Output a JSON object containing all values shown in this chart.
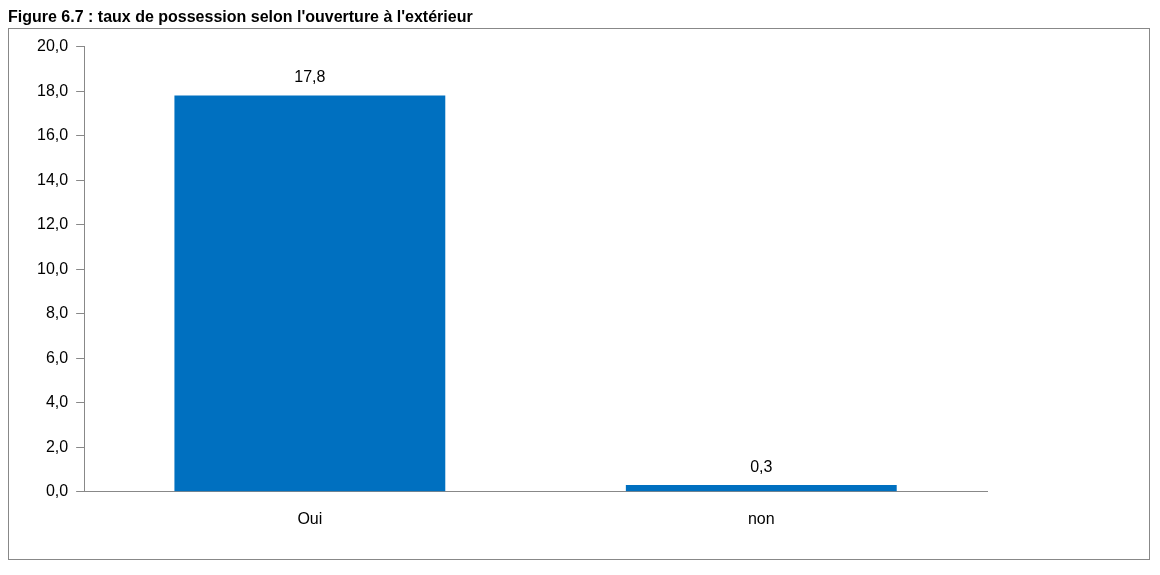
{
  "chart_data": {
    "type": "bar",
    "title": "Figure 6.7 : taux de possession selon l'ouverture à l'extérieur",
    "categories": [
      "Oui",
      "non"
    ],
    "values": [
      17.8,
      0.3
    ],
    "value_labels": [
      "17,8",
      "0,3"
    ],
    "color": "#0070c0",
    "ylim": [
      0,
      20
    ],
    "yticks": [
      {
        "value": 0,
        "label": "0,0"
      },
      {
        "value": 2,
        "label": "2,0"
      },
      {
        "value": 4,
        "label": "4,0"
      },
      {
        "value": 6,
        "label": "6,0"
      },
      {
        "value": 8,
        "label": "8,0"
      },
      {
        "value": 10,
        "label": "10,0"
      },
      {
        "value": 12,
        "label": "12,0"
      },
      {
        "value": 14,
        "label": "14,0"
      },
      {
        "value": 16,
        "label": "16,0"
      },
      {
        "value": 18,
        "label": "18,0"
      },
      {
        "value": 20,
        "label": "20,0"
      }
    ],
    "grid": false,
    "legend": false
  }
}
